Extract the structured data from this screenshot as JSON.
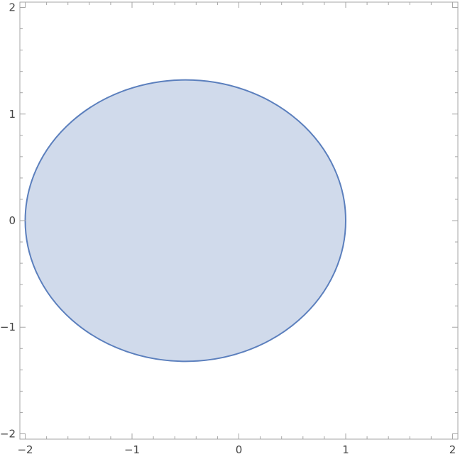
{
  "chart_data": {
    "type": "area",
    "title": "",
    "xlabel": "",
    "ylabel": "",
    "xlim": [
      -2.05,
      2.05
    ],
    "ylim": [
      -2.05,
      2.05
    ],
    "grid": false,
    "x_ticks": [
      {
        "value": -2,
        "label": "−2"
      },
      {
        "value": -1,
        "label": "−1"
      },
      {
        "value": 0,
        "label": "0"
      },
      {
        "value": 1,
        "label": "1"
      },
      {
        "value": 2,
        "label": "2"
      }
    ],
    "y_ticks": [
      {
        "value": -2,
        "label": "−2"
      },
      {
        "value": -1,
        "label": "−1"
      },
      {
        "value": 0,
        "label": "0"
      },
      {
        "value": 1,
        "label": "1"
      },
      {
        "value": 2,
        "label": "2"
      }
    ],
    "minor_tick_step": 0.2,
    "region": {
      "shape": "ellipse",
      "center": [
        -0.5,
        0.0
      ],
      "radius_x": 1.5,
      "radius_y": 1.32,
      "fill_color": "#d0daeb",
      "stroke_color": "#5b7fbd"
    }
  }
}
